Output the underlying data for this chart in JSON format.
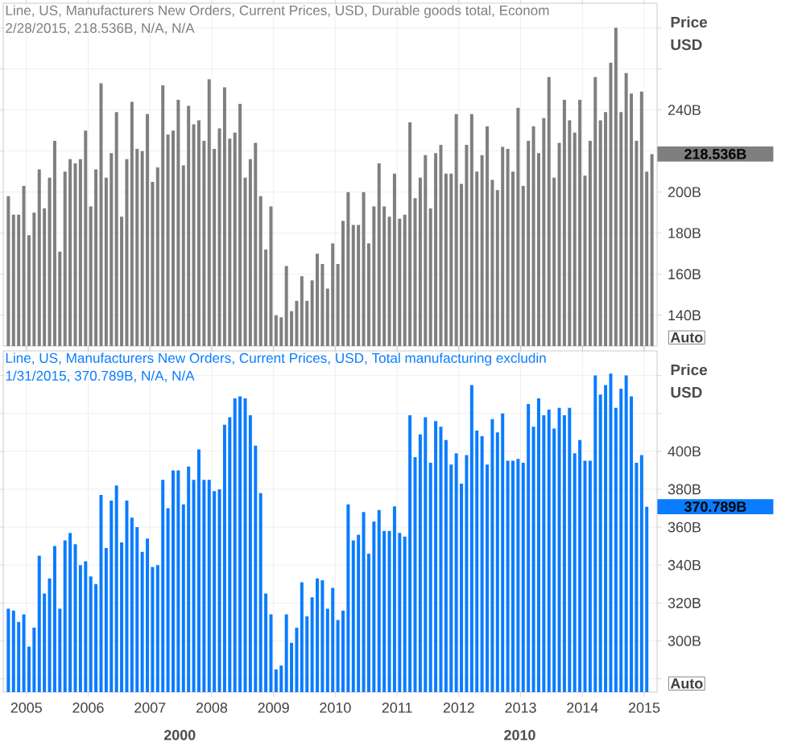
{
  "chart_data": [
    {
      "type": "bar",
      "title": "Line, US, Manufacturers New Orders, Current Prices, USD, Durable goods total, Econom",
      "subtitle": "2/28/2015, 218.536B, N/A, N/A",
      "ylabel": "Price USD",
      "color": "#7f7f7f",
      "grid": true,
      "tick_labels": "y",
      "x": [
        "2004-09",
        "2004-10",
        "2004-11",
        "2004-12",
        "2005-01",
        "2005-02",
        "2005-03",
        "2005-04",
        "2005-05",
        "2005-06",
        "2005-07",
        "2005-08",
        "2005-09",
        "2005-10",
        "2005-11",
        "2005-12",
        "2006-01",
        "2006-02",
        "2006-03",
        "2006-04",
        "2006-05",
        "2006-06",
        "2006-07",
        "2006-08",
        "2006-09",
        "2006-10",
        "2006-11",
        "2006-12",
        "2007-01",
        "2007-02",
        "2007-03",
        "2007-04",
        "2007-05",
        "2007-06",
        "2007-07",
        "2007-08",
        "2007-09",
        "2007-10",
        "2007-11",
        "2007-12",
        "2008-01",
        "2008-02",
        "2008-03",
        "2008-04",
        "2008-05",
        "2008-06",
        "2008-07",
        "2008-08",
        "2008-09",
        "2008-10",
        "2008-11",
        "2008-12",
        "2009-01",
        "2009-02",
        "2009-03",
        "2009-04",
        "2009-05",
        "2009-06",
        "2009-07",
        "2009-08",
        "2009-09",
        "2009-10",
        "2009-11",
        "2009-12",
        "2010-01",
        "2010-02",
        "2010-03",
        "2010-04",
        "2010-05",
        "2010-06",
        "2010-07",
        "2010-08",
        "2010-09",
        "2010-10",
        "2010-11",
        "2010-12",
        "2011-01",
        "2011-02",
        "2011-03",
        "2011-04",
        "2011-05",
        "2011-06",
        "2011-07",
        "2011-08",
        "2011-09",
        "2011-10",
        "2011-11",
        "2011-12",
        "2012-01",
        "2012-02",
        "2012-03",
        "2012-04",
        "2012-05",
        "2012-06",
        "2012-07",
        "2012-08",
        "2012-09",
        "2012-10",
        "2012-11",
        "2012-12",
        "2013-01",
        "2013-02",
        "2013-03",
        "2013-04",
        "2013-05",
        "2013-06",
        "2013-07",
        "2013-08",
        "2013-09",
        "2013-10",
        "2013-11",
        "2013-12",
        "2014-01",
        "2014-02",
        "2014-03",
        "2014-04",
        "2014-05",
        "2014-06",
        "2014-07",
        "2014-08",
        "2014-09",
        "2014-10",
        "2014-11",
        "2014-12",
        "2015-01",
        "2015-02"
      ],
      "values": [
        198,
        189,
        189,
        203,
        179,
        190,
        211,
        192,
        207,
        225,
        171,
        210,
        216,
        214,
        216,
        230,
        193,
        211,
        253,
        207,
        219,
        239,
        188,
        216,
        244,
        221,
        220,
        238,
        205,
        212,
        252,
        228,
        230,
        245,
        213,
        242,
        233,
        235,
        225,
        255,
        221,
        231,
        251,
        226,
        229,
        243,
        207,
        216,
        224,
        198,
        172,
        193,
        140,
        139,
        164,
        142,
        147,
        159,
        147,
        157,
        170,
        165,
        153,
        175,
        165,
        186,
        200,
        184,
        184,
        200,
        175,
        193,
        214,
        193,
        188,
        209,
        187,
        189,
        234,
        197,
        207,
        218,
        192,
        219,
        223,
        209,
        209,
        238,
        204,
        223,
        238,
        210,
        218,
        232,
        206,
        201,
        222,
        221,
        210,
        241,
        203,
        225,
        232,
        219,
        236,
        256,
        207,
        224,
        245,
        235,
        229,
        245,
        208,
        225,
        256,
        235,
        239,
        263,
        280,
        239,
        258,
        248,
        225,
        249,
        210,
        218.536
      ],
      "xlim": [
        "2004-08",
        "2015-03"
      ],
      "xticks": [
        "2005",
        "2006",
        "2007",
        "2008",
        "2009",
        "2010",
        "2011",
        "2012",
        "2013",
        "2014",
        "2015"
      ],
      "ylim": [
        125,
        292
      ],
      "yticks": [
        {
          "value": 140,
          "label": "140B"
        },
        {
          "value": 160,
          "label": "160B"
        },
        {
          "value": 180,
          "label": "180B"
        },
        {
          "value": 200,
          "label": "200B"
        },
        {
          "value": 220,
          "label": null
        },
        {
          "value": 240,
          "label": "240B"
        },
        {
          "value": 260,
          "label": null
        },
        {
          "value": 280,
          "label": null
        }
      ],
      "annotations": [
        "218.536B",
        "Auto"
      ]
    },
    {
      "type": "bar",
      "title": "Line, US, Manufacturers New Orders, Current Prices, USD, Total manufacturing excludin",
      "subtitle": "1/31/2015, 370.789B, N/A, N/A",
      "ylabel": "Price USD",
      "color": "#0a7cff",
      "grid": true,
      "x": [
        "2004-09",
        "2004-10",
        "2004-11",
        "2004-12",
        "2005-01",
        "2005-02",
        "2005-03",
        "2005-04",
        "2005-05",
        "2005-06",
        "2005-07",
        "2005-08",
        "2005-09",
        "2005-10",
        "2005-11",
        "2005-12",
        "2006-01",
        "2006-02",
        "2006-03",
        "2006-04",
        "2006-05",
        "2006-06",
        "2006-07",
        "2006-08",
        "2006-09",
        "2006-10",
        "2006-11",
        "2006-12",
        "2007-01",
        "2007-02",
        "2007-03",
        "2007-04",
        "2007-05",
        "2007-06",
        "2007-07",
        "2007-08",
        "2007-09",
        "2007-10",
        "2007-11",
        "2007-12",
        "2008-01",
        "2008-02",
        "2008-03",
        "2008-04",
        "2008-05",
        "2008-06",
        "2008-07",
        "2008-08",
        "2008-09",
        "2008-10",
        "2008-11",
        "2008-12",
        "2009-01",
        "2009-02",
        "2009-03",
        "2009-04",
        "2009-05",
        "2009-06",
        "2009-07",
        "2009-08",
        "2009-09",
        "2009-10",
        "2009-11",
        "2009-12",
        "2010-01",
        "2010-02",
        "2010-03",
        "2010-04",
        "2010-05",
        "2010-06",
        "2010-07",
        "2010-08",
        "2010-09",
        "2010-10",
        "2010-11",
        "2010-12",
        "2011-01",
        "2011-02",
        "2011-03",
        "2011-04",
        "2011-05",
        "2011-06",
        "2011-07",
        "2011-08",
        "2011-09",
        "2011-10",
        "2011-11",
        "2011-12",
        "2012-01",
        "2012-02",
        "2012-03",
        "2012-04",
        "2012-05",
        "2012-06",
        "2012-07",
        "2012-08",
        "2012-09",
        "2012-10",
        "2012-11",
        "2012-12",
        "2013-01",
        "2013-02",
        "2013-03",
        "2013-04",
        "2013-05",
        "2013-06",
        "2013-07",
        "2013-08",
        "2013-09",
        "2013-10",
        "2013-11",
        "2013-12",
        "2014-01",
        "2014-02",
        "2014-03",
        "2014-04",
        "2014-05",
        "2014-06",
        "2014-07",
        "2014-08",
        "2014-09",
        "2014-10",
        "2014-11",
        "2014-12",
        "2015-01"
      ],
      "values": [
        317,
        316,
        310,
        314,
        297,
        307,
        345,
        325,
        333,
        350,
        317,
        353,
        357,
        351,
        340,
        342,
        334,
        330,
        377,
        349,
        374,
        382,
        352,
        374,
        365,
        360,
        347,
        354,
        339,
        340,
        385,
        370,
        390,
        390,
        372,
        392,
        385,
        401,
        385,
        385,
        379,
        380,
        414,
        418,
        428,
        429,
        428,
        419,
        403,
        378,
        325,
        314,
        285,
        287,
        314,
        299,
        307,
        331,
        313,
        323,
        333,
        332,
        317,
        328,
        311,
        316,
        372,
        353,
        356,
        368,
        346,
        363,
        369,
        358,
        358,
        371,
        357,
        355,
        419,
        397,
        409,
        418,
        394,
        416,
        413,
        406,
        393,
        399,
        383,
        398,
        435,
        411,
        408,
        393,
        417,
        410,
        420,
        395,
        395,
        396,
        394,
        425,
        413,
        428,
        419,
        422,
        412,
        423,
        419,
        423,
        399,
        406,
        395,
        395,
        440,
        430,
        435,
        441,
        423,
        433,
        440,
        429,
        394,
        398,
        370.789
      ],
      "xlim": [
        "2004-08",
        "2015-03"
      ],
      "xticks": [
        "2005",
        "2006",
        "2007",
        "2008",
        "2009",
        "2010",
        "2011",
        "2012",
        "2013",
        "2014",
        "2015"
      ],
      "ylim": [
        273,
        453
      ],
      "yticks": [
        {
          "value": 280,
          "label": null
        },
        {
          "value": 300,
          "label": "300B"
        },
        {
          "value": 320,
          "label": "320B"
        },
        {
          "value": 340,
          "label": "340B"
        },
        {
          "value": 360,
          "label": "360B"
        },
        {
          "value": 380,
          "label": "380B"
        },
        {
          "value": 400,
          "label": "400B"
        },
        {
          "value": 420,
          "label": null
        },
        {
          "value": 440,
          "label": null
        }
      ],
      "annotations": [
        "370.789B",
        "Auto",
        "2000",
        "2010"
      ]
    }
  ]
}
